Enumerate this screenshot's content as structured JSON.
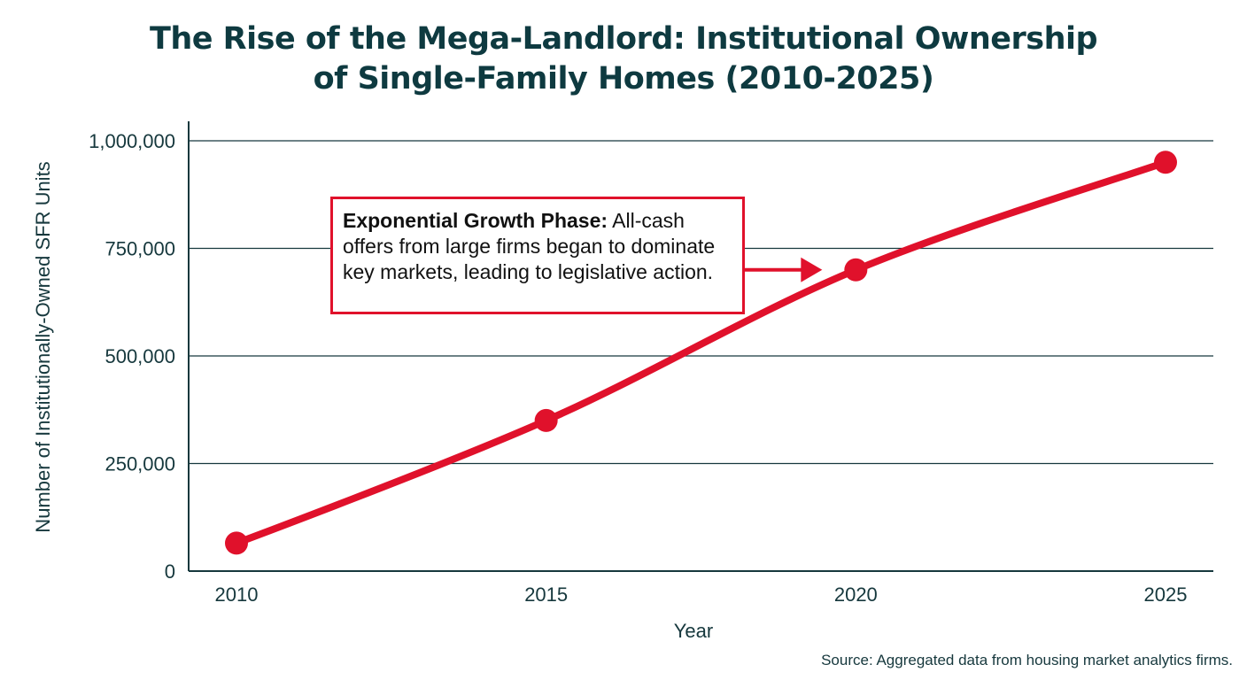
{
  "chart_data": {
    "type": "line",
    "title": "The Rise of the Mega-Landlord: Institutional Ownership of Single-Family Homes (2010-2025)",
    "title_lines": [
      "The Rise of the Mega-Landlord: Institutional Ownership",
      "of Single-Family Homes (2010-2025)"
    ],
    "xlabel": "Year",
    "ylabel": "Number of Institutionally-Owned SFR Units",
    "x": [
      2010,
      2015,
      2020,
      2025
    ],
    "values": [
      65000,
      350000,
      700000,
      950000
    ],
    "xlim": [
      2009,
      2025.5
    ],
    "ylim": [
      0,
      1000000
    ],
    "xticks": [
      "2010",
      "2015",
      "2020",
      "2025"
    ],
    "yticks": [
      0,
      250000,
      500000,
      750000,
      1000000
    ],
    "ytick_labels": [
      "0",
      "250,000",
      "500,000",
      "750,000",
      "1,000,000"
    ],
    "grid": "horizontal",
    "line_color": "#e0112b",
    "axis_color": "#16383d",
    "annotation": {
      "bold": "Exponential Growth Phase:",
      "text": " All-cash offers from large firms began to dominate key markets, leading to legislative action.",
      "points_to": 2020
    },
    "source": "Source: Aggregated data from housing market analytics firms."
  }
}
